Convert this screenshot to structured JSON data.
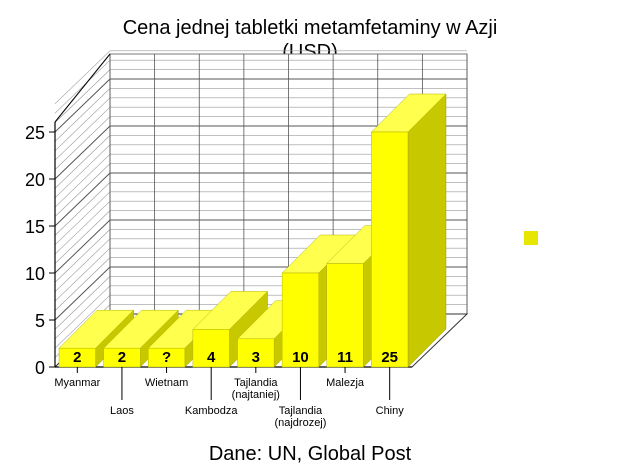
{
  "chart_data": {
    "type": "bar",
    "title": "Cena jednej tabletki metamfetaminy w Azji",
    "subtitle": "(USD)",
    "source": "Dane: UN, Global Post",
    "categories": [
      "Myanmar",
      "Laos",
      "Wietnam",
      "Kambodza",
      "Tajlandia\n(najtaniej)",
      "Tajlandia\n(najdrozej)",
      "Malezja",
      "Chiny"
    ],
    "values": [
      2,
      2,
      null,
      4,
      3,
      10,
      11,
      25
    ],
    "value_labels": [
      "2",
      "2",
      "?",
      "4",
      "3",
      "10",
      "11",
      "25"
    ],
    "unknown_display_value": 2,
    "y_ticks": [
      0,
      5,
      10,
      15,
      20,
      25
    ],
    "ylim": [
      0,
      25
    ],
    "grid": true,
    "three_d": true,
    "colors": {
      "bar_front": "#ffff00",
      "bar_side": "#c8c800",
      "bar_top": "#ffff4d",
      "bar_label": "#000000",
      "legend_square": "#e6e600",
      "grid_line": "#7a7a7a",
      "axis_line": "#000000"
    }
  }
}
